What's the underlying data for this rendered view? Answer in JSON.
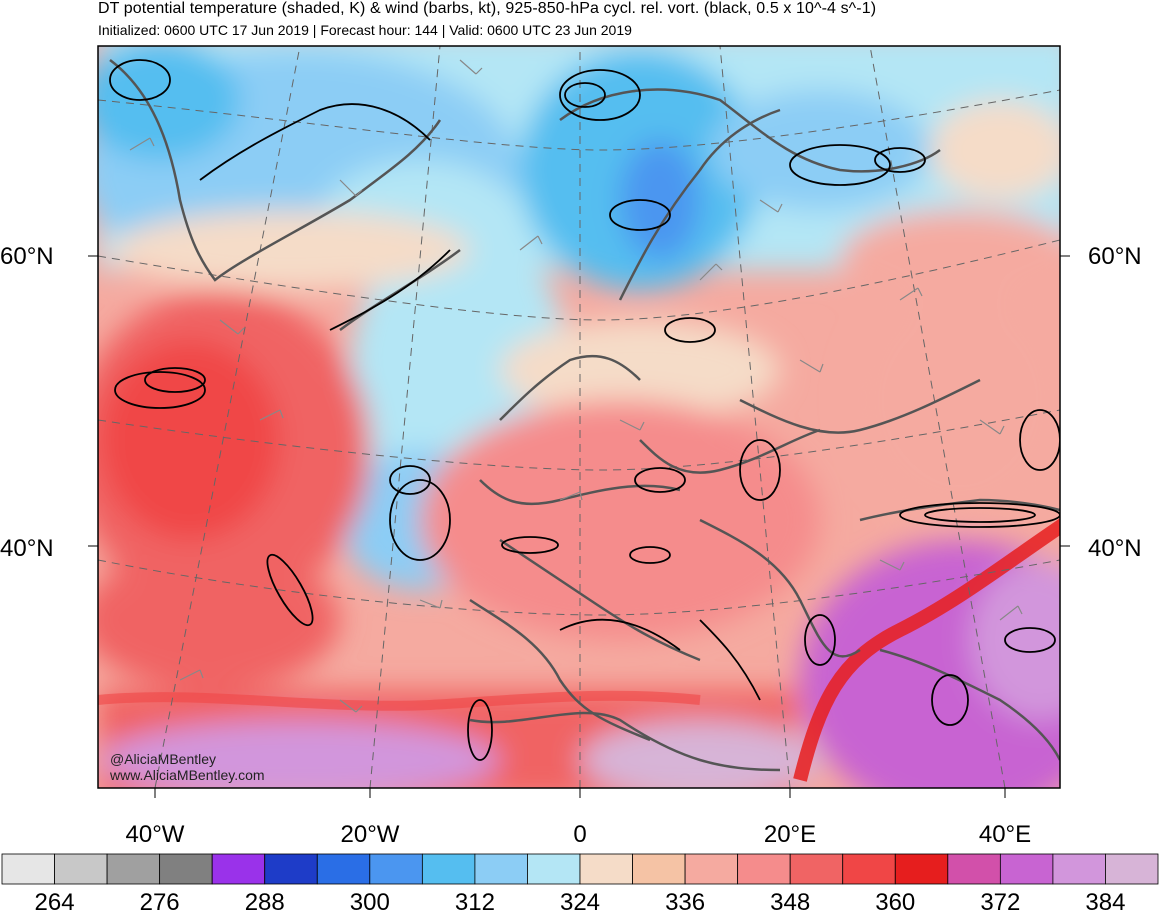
{
  "title": "DT potential temperature (shaded, K) & wind (barbs, kt), 925-850-hPa cycl. rel. vort. (black, 0.5 x 10^-4 s^-1)",
  "subtitle": "Initialized: 0600 UTC 17 Jun 2019 | Forecast hour: 144 | Valid: 0600 UTC 23 Jun 2019",
  "credit": {
    "handle": "@AliciaMBentley",
    "url": "www.AliciaMBentley.com"
  },
  "axes": {
    "lon_labels": [
      "40°W",
      "20°W",
      "0",
      "20°E",
      "40°E"
    ],
    "lat_labels": [
      "60°N",
      "40°N"
    ]
  },
  "colorbar": {
    "colors": [
      "#e6e6e6",
      "#c8c8c8",
      "#a0a0a0",
      "#808080",
      "#9a32ea",
      "#1e3cc8",
      "#2a6ee6",
      "#4b96f0",
      "#55bef0",
      "#8ccdf5",
      "#b4e6f5",
      "#f5dcc8",
      "#f5c3a5",
      "#f5aaa0",
      "#f58c8c",
      "#f06464",
      "#f04646",
      "#e61e1e",
      "#d250aa",
      "#c864d2",
      "#d296dc",
      "#d7b4d7"
    ],
    "tick_labels": [
      "264",
      "276",
      "288",
      "300",
      "312",
      "324",
      "336",
      "348",
      "360",
      "372",
      "384"
    ]
  },
  "legend_colors": {
    "contours": "#000000",
    "coastlines": "#555555",
    "barbs": "#888888"
  }
}
